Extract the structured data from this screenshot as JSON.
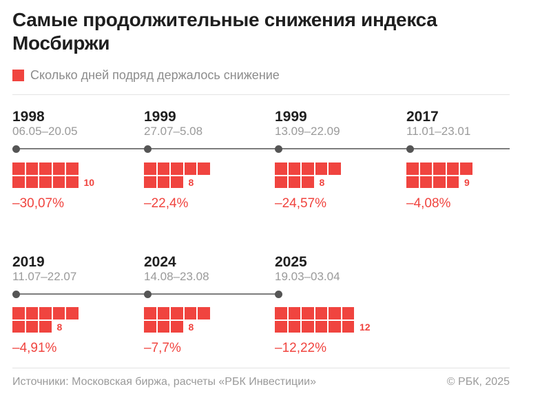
{
  "title": "Самые продолжительные снижения индекса Мосбиржи",
  "legend_label": "Сколько дней подряд держалось снижение",
  "colors": {
    "accent": "#f0443f",
    "text": "#1f1f1f",
    "muted": "#9a9a9a",
    "timeline": "#7d7d7d"
  },
  "chart_data": {
    "type": "bar",
    "title": "Самые продолжительные снижения индекса Мосбиржи",
    "legend": [
      "Сколько дней подряд держалось снижение"
    ],
    "categories": [
      "1998",
      "1999",
      "1999",
      "2017",
      "2019",
      "2024",
      "2025"
    ],
    "series": [
      {
        "name": "Сколько дней подряд держалось снижение",
        "values": [
          10,
          8,
          8,
          9,
          8,
          8,
          12
        ]
      }
    ],
    "episodes": [
      {
        "year": "1998",
        "dates": "06.05–20.05",
        "days": 10,
        "days_label": "10",
        "change": "–30,07%"
      },
      {
        "year": "1999",
        "dates": "27.07–5.08",
        "days": 8,
        "days_label": "8",
        "change": "–22,4%"
      },
      {
        "year": "1999",
        "dates": "13.09–22.09",
        "days": 8,
        "days_label": "8",
        "change": "–24,57%"
      },
      {
        "year": "2017",
        "dates": "11.01–23.01",
        "days": 9,
        "days_label": "9",
        "change": "–4,08%"
      },
      {
        "year": "2019",
        "dates": "11.07–22.07",
        "days": 8,
        "days_label": "8",
        "change": "–4,91%"
      },
      {
        "year": "2024",
        "dates": "14.08–23.08",
        "days": 8,
        "days_label": "8",
        "change": "–7,7%"
      },
      {
        "year": "2025",
        "dates": "19.03–03.04",
        "days": 12,
        "days_label": "12",
        "change": "–12,22%"
      }
    ]
  },
  "footer": {
    "source": "Источники: Московская биржа, расчеты «РБК Инвестиции»",
    "copyright": "© РБК, 2025"
  }
}
